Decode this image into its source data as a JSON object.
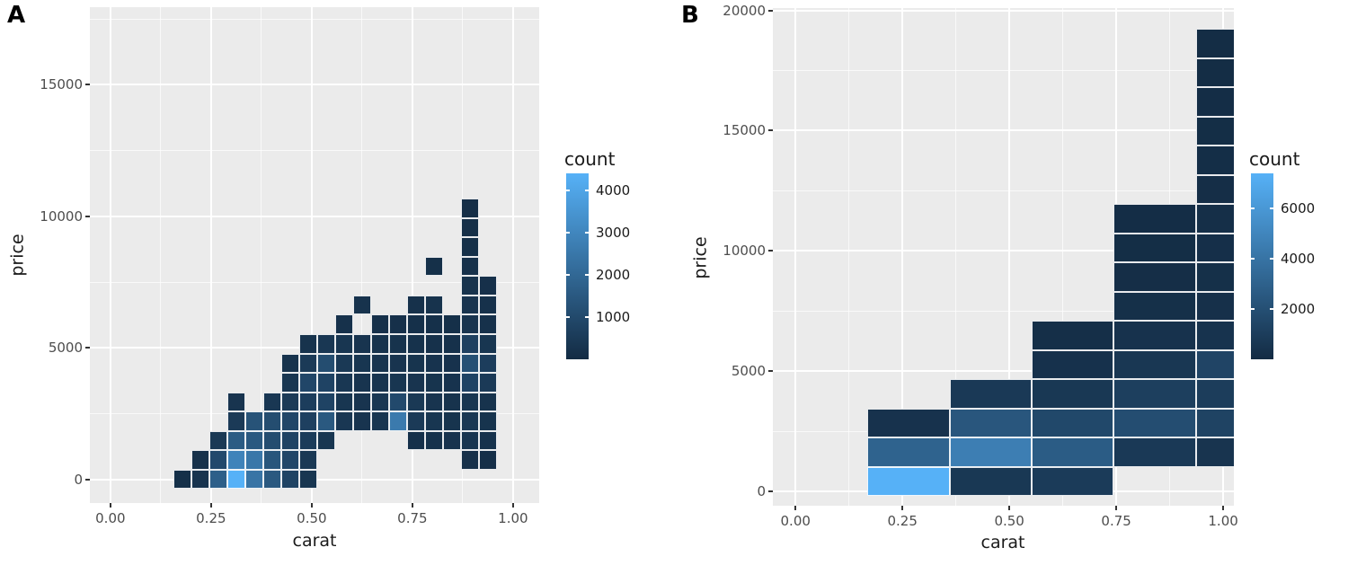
{
  "style": {
    "figure_bg": "#FFFFFF",
    "panel_bg": "#EBEBEB",
    "grid_major": "#FFFFFF",
    "grid_minor": "#FFFFFF",
    "scale_low": "#132B43",
    "scale_high": "#56B1F7",
    "axis_text_color": "#4D4D4D",
    "title_color": "#1A1A1A",
    "tick_mark_color": "#333333",
    "bin_border": "rgba(255,255,255,0.9)"
  },
  "chart_data": [
    {
      "type": "heatmap",
      "panel_label": "A",
      "xlabel": "carat",
      "ylabel": "price",
      "x_domain": [
        -0.051,
        1.065
      ],
      "y_domain": [
        -900,
        17950
      ],
      "x_ticks": [
        {
          "value": 0,
          "label": "0.00"
        },
        {
          "value": 0.25,
          "label": "0.25"
        },
        {
          "value": 0.5,
          "label": "0.50"
        },
        {
          "value": 0.75,
          "label": "0.75"
        },
        {
          "value": 1,
          "label": "1.00"
        }
      ],
      "y_ticks": [
        {
          "value": 0,
          "label": "0"
        },
        {
          "value": 5000,
          "label": "5000"
        },
        {
          "value": 10000,
          "label": "10000"
        },
        {
          "value": 15000,
          "label": "15000"
        }
      ],
      "x_minor": [
        0.125,
        0.375,
        0.625,
        0.875
      ],
      "y_minor": [
        2500,
        7500,
        12500,
        17500
      ],
      "legend": {
        "title": "count",
        "min": 0,
        "max": 4400,
        "ticks": [
          {
            "value": 4000,
            "label": "4000"
          },
          {
            "value": 3000,
            "label": "3000"
          },
          {
            "value": 2000,
            "label": "2000"
          },
          {
            "value": 1000,
            "label": "1000"
          }
        ]
      },
      "bin_grid": {
        "x0": 0.156,
        "xw": 0.0447,
        "y0": -368,
        "yw": 736
      },
      "bins": [
        [
          0,
          0,
          150
        ],
        [
          1,
          0,
          300
        ],
        [
          2,
          0,
          1700
        ],
        [
          3,
          0,
          4400
        ],
        [
          4,
          0,
          2400
        ],
        [
          5,
          0,
          1500
        ],
        [
          6,
          0,
          800
        ],
        [
          7,
          0,
          350
        ],
        [
          1,
          1,
          200
        ],
        [
          2,
          1,
          1000
        ],
        [
          3,
          1,
          2900
        ],
        [
          4,
          1,
          2500
        ],
        [
          5,
          1,
          1400
        ],
        [
          6,
          1,
          900
        ],
        [
          7,
          1,
          450
        ],
        [
          16,
          1,
          180
        ],
        [
          17,
          1,
          140
        ],
        [
          2,
          2,
          450
        ],
        [
          3,
          2,
          1600
        ],
        [
          4,
          2,
          1500
        ],
        [
          5,
          2,
          1100
        ],
        [
          6,
          2,
          800
        ],
        [
          7,
          2,
          550
        ],
        [
          8,
          2,
          350
        ],
        [
          13,
          2,
          160
        ],
        [
          14,
          2,
          220
        ],
        [
          15,
          2,
          260
        ],
        [
          16,
          2,
          320
        ],
        [
          17,
          2,
          220
        ],
        [
          3,
          3,
          500
        ],
        [
          4,
          3,
          1300
        ],
        [
          5,
          3,
          1100
        ],
        [
          6,
          3,
          900
        ],
        [
          7,
          3,
          700
        ],
        [
          8,
          3,
          1500
        ],
        [
          9,
          3,
          400
        ],
        [
          10,
          3,
          300
        ],
        [
          11,
          3,
          350
        ],
        [
          12,
          3,
          2600
        ],
        [
          13,
          3,
          500
        ],
        [
          14,
          3,
          350
        ],
        [
          15,
          3,
          280
        ],
        [
          16,
          3,
          400
        ],
        [
          17,
          3,
          280
        ],
        [
          3,
          4,
          300
        ],
        [
          5,
          4,
          400
        ],
        [
          6,
          4,
          500
        ],
        [
          7,
          4,
          600
        ],
        [
          8,
          4,
          800
        ],
        [
          9,
          4,
          350
        ],
        [
          10,
          4,
          300
        ],
        [
          11,
          4,
          400
        ],
        [
          12,
          4,
          1000
        ],
        [
          13,
          4,
          450
        ],
        [
          14,
          4,
          300
        ],
        [
          15,
          4,
          250
        ],
        [
          16,
          4,
          350
        ],
        [
          17,
          4,
          250
        ],
        [
          6,
          5,
          350
        ],
        [
          7,
          5,
          900
        ],
        [
          8,
          5,
          800
        ],
        [
          9,
          5,
          400
        ],
        [
          10,
          5,
          300
        ],
        [
          11,
          5,
          300
        ],
        [
          12,
          5,
          350
        ],
        [
          13,
          5,
          300
        ],
        [
          14,
          5,
          280
        ],
        [
          15,
          5,
          260
        ],
        [
          16,
          5,
          800
        ],
        [
          17,
          5,
          500
        ],
        [
          6,
          6,
          250
        ],
        [
          7,
          6,
          500
        ],
        [
          8,
          6,
          1100
        ],
        [
          9,
          6,
          450
        ],
        [
          10,
          6,
          350
        ],
        [
          11,
          6,
          300
        ],
        [
          12,
          6,
          300
        ],
        [
          13,
          6,
          280
        ],
        [
          14,
          6,
          260
        ],
        [
          15,
          6,
          240
        ],
        [
          16,
          6,
          1200
        ],
        [
          17,
          6,
          600
        ],
        [
          7,
          7,
          250
        ],
        [
          8,
          7,
          400
        ],
        [
          9,
          7,
          350
        ],
        [
          10,
          7,
          300
        ],
        [
          11,
          7,
          250
        ],
        [
          12,
          7,
          250
        ],
        [
          13,
          7,
          220
        ],
        [
          14,
          7,
          200
        ],
        [
          15,
          7,
          200
        ],
        [
          16,
          7,
          700
        ],
        [
          17,
          7,
          350
        ],
        [
          9,
          8,
          200
        ],
        [
          11,
          8,
          180
        ],
        [
          12,
          8,
          180
        ],
        [
          13,
          8,
          160
        ],
        [
          14,
          8,
          160
        ],
        [
          15,
          8,
          150
        ],
        [
          16,
          8,
          300
        ],
        [
          17,
          8,
          200
        ],
        [
          10,
          9,
          250
        ],
        [
          13,
          9,
          200
        ],
        [
          14,
          9,
          250
        ],
        [
          16,
          9,
          300
        ],
        [
          17,
          9,
          200
        ],
        [
          16,
          10,
          250
        ],
        [
          17,
          10,
          180
        ],
        [
          14,
          11,
          150
        ],
        [
          16,
          11,
          200
        ],
        [
          16,
          12,
          150
        ],
        [
          16,
          13,
          120
        ],
        [
          16,
          14,
          100
        ]
      ]
    },
    {
      "type": "heatmap",
      "panel_label": "B",
      "xlabel": "carat",
      "ylabel": "price",
      "x_domain": [
        -0.053,
        1.025
      ],
      "y_domain": [
        -600,
        20100
      ],
      "x_ticks": [
        {
          "value": 0,
          "label": "0.00"
        },
        {
          "value": 0.25,
          "label": "0.25"
        },
        {
          "value": 0.5,
          "label": "0.50"
        },
        {
          "value": 0.75,
          "label": "0.75"
        },
        {
          "value": 1,
          "label": "1.00"
        }
      ],
      "y_ticks": [
        {
          "value": 0,
          "label": "0"
        },
        {
          "value": 5000,
          "label": "5000"
        },
        {
          "value": 10000,
          "label": "10000"
        },
        {
          "value": 15000,
          "label": "15000"
        },
        {
          "value": 20000,
          "label": "20000"
        }
      ],
      "x_minor": [
        0.125,
        0.375,
        0.625,
        0.875
      ],
      "y_minor": [
        2500,
        7500,
        12500,
        17500
      ],
      "legend": {
        "title": "count",
        "min": 0,
        "max": 7400,
        "ticks": [
          {
            "value": 6000,
            "label": "6000"
          },
          {
            "value": 4000,
            "label": "4000"
          },
          {
            "value": 2000,
            "label": "2000"
          }
        ]
      },
      "bin_grid": {
        "x0": 0.168,
        "xw": 0.192,
        "y0": -200,
        "yw": 1215
      },
      "bins": [
        [
          0,
          0,
          7400
        ],
        [
          0,
          1,
          3100
        ],
        [
          0,
          2,
          400
        ],
        [
          1,
          0,
          700
        ],
        [
          1,
          1,
          4600
        ],
        [
          1,
          2,
          2400
        ],
        [
          1,
          3,
          800
        ],
        [
          2,
          0,
          900
        ],
        [
          2,
          1,
          2700
        ],
        [
          2,
          2,
          1600
        ],
        [
          2,
          3,
          700
        ],
        [
          2,
          4,
          350
        ],
        [
          2,
          5,
          200
        ],
        [
          3,
          1,
          800
        ],
        [
          3,
          2,
          1900
        ],
        [
          3,
          3,
          1100
        ],
        [
          3,
          4,
          650
        ],
        [
          3,
          5,
          400
        ],
        [
          3,
          6,
          250
        ],
        [
          3,
          7,
          180
        ],
        [
          3,
          8,
          140
        ],
        [
          3,
          9,
          110
        ],
        [
          4,
          1,
          500
        ],
        [
          4,
          2,
          1300
        ],
        [
          4,
          3,
          1000
        ],
        [
          4,
          4,
          1400
        ],
        [
          4,
          5,
          450
        ],
        [
          4,
          6,
          300
        ],
        [
          4,
          7,
          260
        ],
        [
          4,
          8,
          230
        ],
        [
          4,
          9,
          200
        ],
        [
          4,
          10,
          180
        ],
        [
          4,
          11,
          160
        ],
        [
          4,
          12,
          140
        ],
        [
          4,
          13,
          120
        ],
        [
          4,
          14,
          100
        ],
        [
          4,
          15,
          90
        ]
      ]
    }
  ]
}
